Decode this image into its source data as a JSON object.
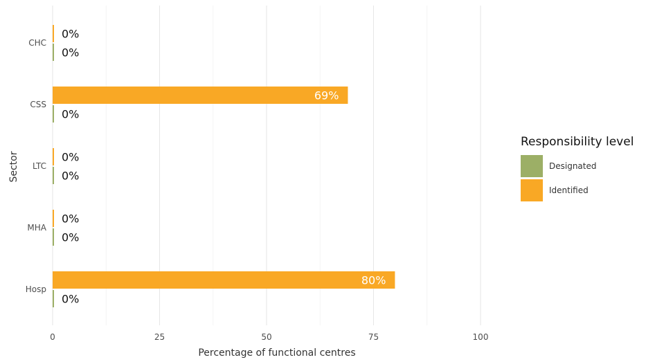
{
  "chart_data": {
    "type": "bar",
    "orientation": "horizontal",
    "categories": [
      "CHC",
      "CSS",
      "LTC",
      "MHA",
      "Hosp"
    ],
    "series": [
      {
        "name": "Identified",
        "values": [
          0,
          69,
          0,
          0,
          80
        ],
        "labels": [
          "0%",
          "69%",
          "0%",
          "0%",
          "80%"
        ],
        "color": "#F9A825"
      },
      {
        "name": "Designated",
        "values": [
          0,
          0,
          0,
          0,
          0
        ],
        "labels": [
          "0%",
          "0%",
          "0%",
          "0%",
          "0%"
        ],
        "color": "#9CAF66"
      }
    ],
    "xlabel": "Percentage of functional centres",
    "ylabel": "Sector",
    "xlim": [
      0,
      100
    ],
    "xticks": [
      "0",
      "25",
      "50",
      "75",
      "100"
    ],
    "grid": true,
    "legend": {
      "title": "Responsibility level",
      "placement": "right",
      "entries": [
        "Designated",
        "Identified"
      ]
    }
  }
}
